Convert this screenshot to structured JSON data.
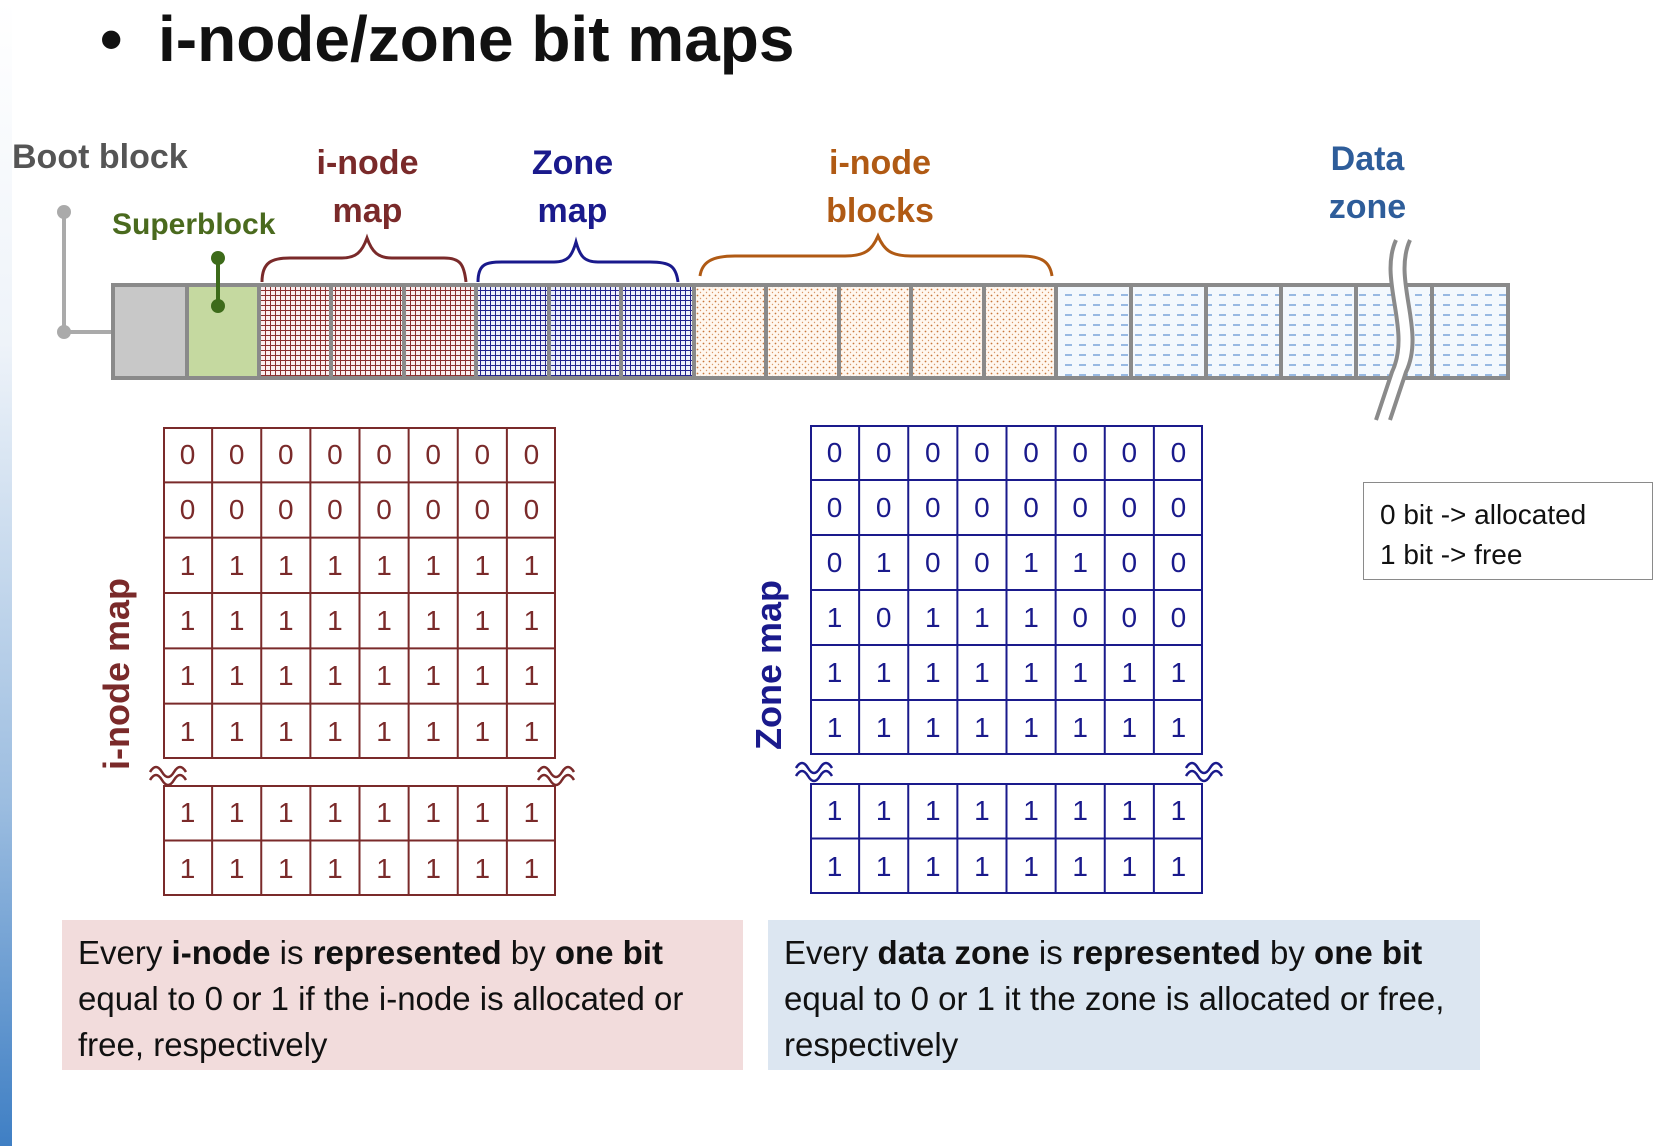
{
  "slide": {
    "title": "i-node/zone bit maps",
    "bullet": "•"
  },
  "disk_labels": {
    "boot_block": "Boot block",
    "superblock": "Superblock",
    "inode_map": [
      "i-node",
      "map"
    ],
    "zone_map": [
      "Zone",
      "map"
    ],
    "inode_blocks": [
      "i-node",
      "blocks"
    ],
    "data_zone": [
      "Data",
      "zone"
    ]
  },
  "colors": {
    "boot": "#c8c8c8",
    "superblock": "#c5d9a0",
    "superblock_text": "#4a6a1e",
    "inode": "#7a2a2a",
    "zone": "#1a1a8c",
    "inode_blocks": "#b05a14",
    "data_zone": "#2e5d9a",
    "border": "#8a8a8a"
  },
  "inode_bitmap": {
    "label": "i-node map",
    "rows_top": [
      [
        "0",
        "0",
        "0",
        "0",
        "0",
        "0",
        "0",
        "0"
      ],
      [
        "0",
        "0",
        "0",
        "0",
        "0",
        "0",
        "0",
        "0"
      ],
      [
        "1",
        "1",
        "1",
        "1",
        "1",
        "1",
        "1",
        "1"
      ],
      [
        "1",
        "1",
        "1",
        "1",
        "1",
        "1",
        "1",
        "1"
      ],
      [
        "1",
        "1",
        "1",
        "1",
        "1",
        "1",
        "1",
        "1"
      ],
      [
        "1",
        "1",
        "1",
        "1",
        "1",
        "1",
        "1",
        "1"
      ]
    ],
    "rows_bottom": [
      [
        "1",
        "1",
        "1",
        "1",
        "1",
        "1",
        "1",
        "1"
      ],
      [
        "1",
        "1",
        "1",
        "1",
        "1",
        "1",
        "1",
        "1"
      ]
    ]
  },
  "zone_bitmap": {
    "label": "Zone map",
    "rows_top": [
      [
        "0",
        "0",
        "0",
        "0",
        "0",
        "0",
        "0",
        "0"
      ],
      [
        "0",
        "0",
        "0",
        "0",
        "0",
        "0",
        "0",
        "0"
      ],
      [
        "0",
        "1",
        "0",
        "0",
        "1",
        "1",
        "0",
        "0"
      ],
      [
        "1",
        "0",
        "1",
        "1",
        "1",
        "0",
        "0",
        "0"
      ],
      [
        "1",
        "1",
        "1",
        "1",
        "1",
        "1",
        "1",
        "1"
      ],
      [
        "1",
        "1",
        "1",
        "1",
        "1",
        "1",
        "1",
        "1"
      ]
    ],
    "rows_bottom": [
      [
        "1",
        "1",
        "1",
        "1",
        "1",
        "1",
        "1",
        "1"
      ],
      [
        "1",
        "1",
        "1",
        "1",
        "1",
        "1",
        "1",
        "1"
      ]
    ]
  },
  "legend": {
    "line1": "0 bit -> allocated",
    "line2": "1 bit -> free"
  },
  "notes": {
    "inode": {
      "a": "Every ",
      "b": "i-node",
      "c": " is ",
      "d": "represented",
      "e": " by ",
      "f": "one bit",
      "g": " equal to 0 or 1 if the i-node is allocated or free, respectively",
      "bg": "#f2dcdc"
    },
    "zone": {
      "a": "Every ",
      "b": "data zone",
      "c": " is ",
      "d": "represented",
      "e": " by ",
      "f": "one bit",
      "g": " equal to 0 or 1 it the zone is allocated or free, respectively",
      "bg": "#dce6f1"
    }
  }
}
